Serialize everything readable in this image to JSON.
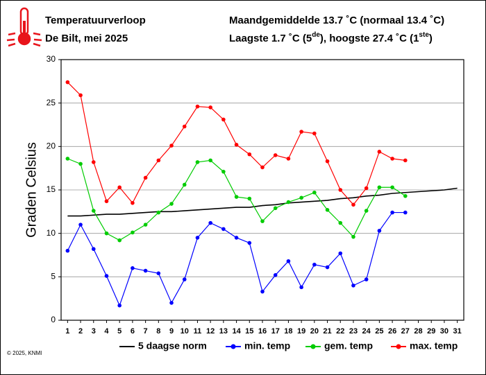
{
  "chart_data": {
    "type": "line",
    "title": "Temperatuurverloop",
    "subtitle": "De Bilt, mei 2025",
    "summary": "Maandgemiddelde 13.7 ˚C (normaal 13.4 ˚C)",
    "extremes": [
      "Laagste 1.7 ˚C (5",
      "de",
      "), hoogste 27.4 ˚C (1",
      "ste",
      ")"
    ],
    "ylabel": "Graden Celsius",
    "footnote": "© 2025, KNMI",
    "categories": [
      "1",
      "2",
      "3",
      "4",
      "5",
      "6",
      "7",
      "8",
      "9",
      "10",
      "11",
      "12",
      "13",
      "14",
      "15",
      "16",
      "17",
      "18",
      "19",
      "20",
      "21",
      "22",
      "23",
      "24",
      "25",
      "26",
      "27",
      "28",
      "29",
      "30",
      "31"
    ],
    "ylim": [
      0,
      30
    ],
    "yticks": [
      0,
      5,
      10,
      15,
      20,
      25,
      30
    ],
    "grid": true,
    "series": [
      {
        "name": "5 daagse norm",
        "color": "#000000",
        "markers": false,
        "values": [
          12.0,
          12.0,
          12.1,
          12.2,
          12.2,
          12.3,
          12.4,
          12.5,
          12.5,
          12.6,
          12.7,
          12.8,
          12.9,
          13.0,
          13.0,
          13.2,
          13.3,
          13.5,
          13.6,
          13.7,
          13.8,
          14.0,
          14.1,
          14.3,
          14.4,
          14.6,
          14.7,
          14.8,
          14.9,
          15.0,
          15.2
        ]
      },
      {
        "name": "min. temp",
        "color": "#0000ff",
        "markers": true,
        "values": [
          8.0,
          11.0,
          8.2,
          5.1,
          1.7,
          6.0,
          5.7,
          5.4,
          2.0,
          4.7,
          9.5,
          11.2,
          10.5,
          9.5,
          8.9,
          3.3,
          5.2,
          6.8,
          3.8,
          6.4,
          6.1,
          7.7,
          4.0,
          4.7,
          10.3,
          12.4,
          12.4,
          null,
          null,
          null,
          null
        ]
      },
      {
        "name": "gem. temp",
        "color": "#00cc00",
        "markers": true,
        "values": [
          18.6,
          18.0,
          12.6,
          10.0,
          9.2,
          10.1,
          11.0,
          12.4,
          13.4,
          15.6,
          18.2,
          18.4,
          17.1,
          14.2,
          14.0,
          11.4,
          12.9,
          13.6,
          14.1,
          14.7,
          12.7,
          11.2,
          9.6,
          12.6,
          15.3,
          15.3,
          14.3,
          null,
          null,
          null,
          null
        ]
      },
      {
        "name": "max. temp",
        "color": "#ff0000",
        "markers": true,
        "values": [
          27.4,
          25.9,
          18.2,
          13.7,
          15.3,
          13.5,
          16.4,
          18.4,
          20.1,
          22.3,
          24.6,
          24.5,
          23.1,
          20.2,
          19.1,
          17.6,
          19.0,
          18.6,
          21.7,
          21.5,
          18.3,
          15.0,
          13.3,
          15.2,
          19.4,
          18.6,
          18.4,
          null,
          null,
          null,
          null
        ]
      }
    ]
  }
}
